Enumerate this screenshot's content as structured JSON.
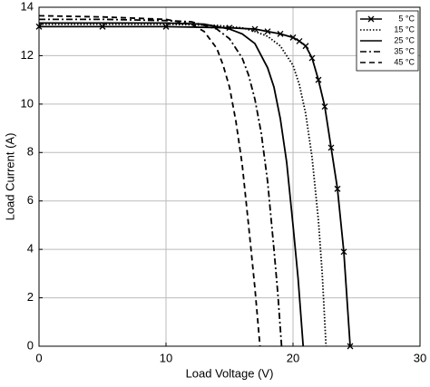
{
  "chart_data": {
    "type": "line",
    "x_label": "Load Voltage (V)",
    "y_label": "Load Current (A)",
    "xlim": [
      0,
      30
    ],
    "xticks": [
      0,
      10,
      20,
      30
    ],
    "ylim": [
      0,
      14
    ],
    "yticks": [
      0,
      2,
      4,
      6,
      8,
      10,
      12,
      14
    ],
    "grid": true,
    "legend": "upper right",
    "series": [
      {
        "name": "5 °C",
        "color": "#000000",
        "dash": "solid",
        "marker": "x",
        "x": [
          0,
          5,
          10,
          15,
          17,
          18,
          19,
          20,
          20.5,
          21,
          21.5,
          22,
          22.5,
          23,
          23.5,
          24,
          24.5
        ],
        "values": [
          13.2,
          13.2,
          13.2,
          13.15,
          13.1,
          13.0,
          12.9,
          12.75,
          12.6,
          12.4,
          11.9,
          11.0,
          9.9,
          8.2,
          6.5,
          3.9,
          0
        ]
      },
      {
        "name": "15 °C",
        "color": "#000000",
        "dash": "dotted",
        "x": [
          0,
          5,
          10,
          14,
          16,
          17,
          18,
          19,
          20,
          20.5,
          21,
          21.5,
          22,
          22.3,
          22.6
        ],
        "values": [
          13.3,
          13.3,
          13.3,
          13.25,
          13.15,
          13.0,
          12.8,
          12.4,
          11.6,
          10.8,
          9.6,
          7.8,
          5.2,
          3.0,
          0
        ]
      },
      {
        "name": "25 °C",
        "color": "#000000",
        "dash": "solid",
        "x": [
          0,
          5,
          10,
          13,
          15,
          16,
          17,
          18,
          18.5,
          19,
          19.5,
          20,
          20.4,
          20.8
        ],
        "values": [
          13.35,
          13.35,
          13.35,
          13.3,
          13.1,
          12.9,
          12.5,
          11.5,
          10.7,
          9.4,
          7.6,
          5.0,
          2.8,
          0
        ]
      },
      {
        "name": "35 °C",
        "color": "#000000",
        "dash": "dash-dot",
        "x": [
          0,
          5,
          10,
          12,
          14,
          15,
          16,
          16.5,
          17,
          17.5,
          18,
          18.5,
          18.8,
          19.1
        ],
        "values": [
          13.5,
          13.5,
          13.45,
          13.4,
          13.1,
          12.7,
          11.9,
          11.2,
          10.2,
          8.8,
          6.8,
          4.0,
          2.2,
          0
        ]
      },
      {
        "name": "45 °C",
        "color": "#000000",
        "dash": "dashed",
        "x": [
          0,
          5,
          10,
          12,
          13,
          14,
          14.5,
          15,
          15.5,
          16,
          16.5,
          17,
          17.4
        ],
        "values": [
          13.65,
          13.6,
          13.5,
          13.3,
          13.0,
          12.3,
          11.6,
          10.7,
          9.3,
          7.5,
          5.0,
          2.4,
          0
        ]
      }
    ]
  }
}
